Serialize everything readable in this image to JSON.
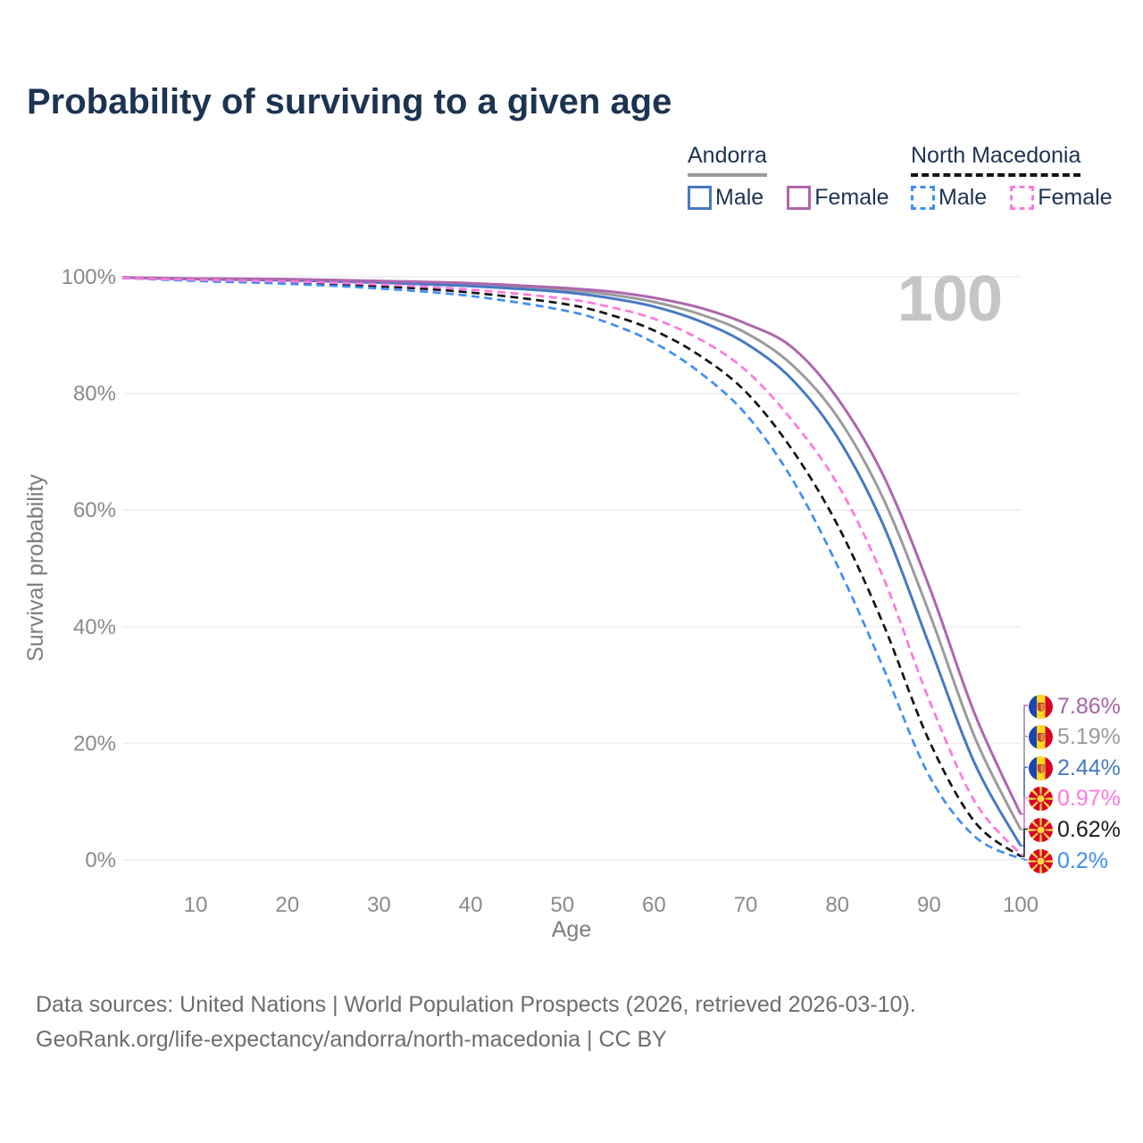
{
  "title": "Probability of surviving to a given age",
  "watermark": "100",
  "legend": {
    "groups": [
      {
        "name": "Andorra",
        "underline_style": "solid",
        "underline_color": "#9a9a9a",
        "items": [
          {
            "label": "Male",
            "color": "#4679c4",
            "dashed": false
          },
          {
            "label": "Female",
            "color": "#ae66ad",
            "dashed": false
          }
        ]
      },
      {
        "name": "North Macedonia",
        "underline_style": "dashed",
        "underline_color": "#141414",
        "items": [
          {
            "label": "Male",
            "color": "#3f8ef5",
            "dashed": true
          },
          {
            "label": "Female",
            "color": "#ff78dc",
            "dashed": true
          }
        ]
      }
    ]
  },
  "axes": {
    "y": {
      "title": "Survival probability",
      "tick_labels": [
        "0%",
        "20%",
        "40%",
        "60%",
        "80%",
        "100%"
      ],
      "tick_values": [
        0,
        20,
        40,
        60,
        80,
        100
      ]
    },
    "x": {
      "title": "Age",
      "tick_values": [
        10,
        20,
        30,
        40,
        50,
        60,
        70,
        80,
        90,
        100
      ]
    }
  },
  "chart_data": {
    "type": "line",
    "title": "Probability of surviving to a given age",
    "xlabel": "Age",
    "ylabel": "Survival probability",
    "x_range": [
      2,
      100
    ],
    "y_range_pct": [
      0,
      100
    ],
    "grid": "horizontal",
    "hover_age": "100",
    "series": [
      {
        "name": "Andorra Female",
        "country": "Andorra",
        "sex": "Female",
        "color": "#ae66ad",
        "label_color": "#a565a5",
        "dashed": false,
        "flag": "ad",
        "end_label": "7.86%",
        "end_value_pct": 7.86,
        "points": [
          [
            2,
            99.9
          ],
          [
            10,
            99.7
          ],
          [
            20,
            99.6
          ],
          [
            30,
            99.3
          ],
          [
            40,
            98.9
          ],
          [
            50,
            98.1
          ],
          [
            55,
            97.5
          ],
          [
            60,
            96.4
          ],
          [
            65,
            94.7
          ],
          [
            70,
            92.0
          ],
          [
            75,
            88.0
          ],
          [
            80,
            79.2
          ],
          [
            85,
            66.0
          ],
          [
            90,
            47.0
          ],
          [
            95,
            25.0
          ],
          [
            100,
            7.86
          ]
        ]
      },
      {
        "name": "Andorra Both sexes",
        "country": "Andorra",
        "sex": "Both",
        "color": "#9b9b9b",
        "label_color": "#9b9b9b",
        "dashed": false,
        "flag": "ad",
        "end_label": "5.19%",
        "end_value_pct": 5.19,
        "points": [
          [
            2,
            99.9
          ],
          [
            10,
            99.7
          ],
          [
            20,
            99.5
          ],
          [
            30,
            99.2
          ],
          [
            40,
            98.7
          ],
          [
            50,
            97.8
          ],
          [
            55,
            97.0
          ],
          [
            60,
            95.7
          ],
          [
            65,
            93.6
          ],
          [
            70,
            90.4
          ],
          [
            75,
            85.0
          ],
          [
            80,
            76.0
          ],
          [
            85,
            62.0
          ],
          [
            90,
            42.5
          ],
          [
            95,
            21.0
          ],
          [
            100,
            5.19
          ]
        ]
      },
      {
        "name": "Andorra Male",
        "country": "Andorra",
        "sex": "Male",
        "color": "#4679c4",
        "label_color": "#4679c4",
        "dashed": false,
        "flag": "ad",
        "end_label": "2.44%",
        "end_value_pct": 2.44,
        "points": [
          [
            2,
            99.9
          ],
          [
            10,
            99.6
          ],
          [
            20,
            99.4
          ],
          [
            30,
            99.0
          ],
          [
            40,
            98.4
          ],
          [
            50,
            97.4
          ],
          [
            55,
            96.4
          ],
          [
            60,
            94.9
          ],
          [
            65,
            92.4
          ],
          [
            70,
            88.6
          ],
          [
            75,
            82.5
          ],
          [
            80,
            72.5
          ],
          [
            85,
            57.5
          ],
          [
            90,
            37.0
          ],
          [
            95,
            16.5
          ],
          [
            100,
            2.44
          ]
        ]
      },
      {
        "name": "North Macedonia Female",
        "country": "North Macedonia",
        "sex": "Female",
        "color": "#ff78dc",
        "label_color": "#ff78dc",
        "dashed": true,
        "flag": "mk",
        "end_label": "0.97%",
        "end_value_pct": 0.97,
        "points": [
          [
            2,
            99.8
          ],
          [
            10,
            99.5
          ],
          [
            20,
            99.2
          ],
          [
            30,
            98.7
          ],
          [
            40,
            97.8
          ],
          [
            50,
            96.3
          ],
          [
            55,
            94.9
          ],
          [
            60,
            92.8
          ],
          [
            65,
            89.3
          ],
          [
            70,
            84.0
          ],
          [
            75,
            75.5
          ],
          [
            80,
            64.5
          ],
          [
            85,
            48.5
          ],
          [
            90,
            27.5
          ],
          [
            95,
            10.0
          ],
          [
            100,
            0.97
          ]
        ]
      },
      {
        "name": "North Macedonia Both sexes",
        "country": "North Macedonia",
        "sex": "Both",
        "color": "#141414",
        "label_color": "#1a1a1a",
        "dashed": true,
        "flag": "mk",
        "end_label": "0.62%",
        "end_value_pct": 0.62,
        "points": [
          [
            2,
            99.8
          ],
          [
            10,
            99.4
          ],
          [
            20,
            99.0
          ],
          [
            30,
            98.4
          ],
          [
            40,
            97.3
          ],
          [
            50,
            95.4
          ],
          [
            55,
            93.6
          ],
          [
            60,
            90.8
          ],
          [
            65,
            86.5
          ],
          [
            70,
            80.3
          ],
          [
            75,
            70.5
          ],
          [
            80,
            57.5
          ],
          [
            85,
            40.5
          ],
          [
            90,
            20.5
          ],
          [
            95,
            6.5
          ],
          [
            100,
            0.62
          ]
        ]
      },
      {
        "name": "North Macedonia Male",
        "country": "North Macedonia",
        "sex": "Male",
        "color": "#3f8ef5",
        "label_color": "#3f8ef5",
        "dashed": true,
        "flag": "mk",
        "end_label": "0.2%",
        "end_value_pct": 0.2,
        "points": [
          [
            2,
            99.8
          ],
          [
            10,
            99.3
          ],
          [
            20,
            98.8
          ],
          [
            30,
            98.0
          ],
          [
            40,
            96.7
          ],
          [
            50,
            94.3
          ],
          [
            55,
            92.1
          ],
          [
            60,
            88.7
          ],
          [
            65,
            83.6
          ],
          [
            70,
            76.5
          ],
          [
            75,
            65.5
          ],
          [
            80,
            50.5
          ],
          [
            85,
            33.0
          ],
          [
            90,
            14.5
          ],
          [
            95,
            4.0
          ],
          [
            100,
            0.2
          ]
        ]
      }
    ]
  },
  "footer": {
    "line1": "Data sources: United Nations | World Population Prospects (2026, retrieved 2026-03-10).",
    "line2": "GeoRank.org/life-expectancy/andorra/north-macedonia | CC BY"
  }
}
